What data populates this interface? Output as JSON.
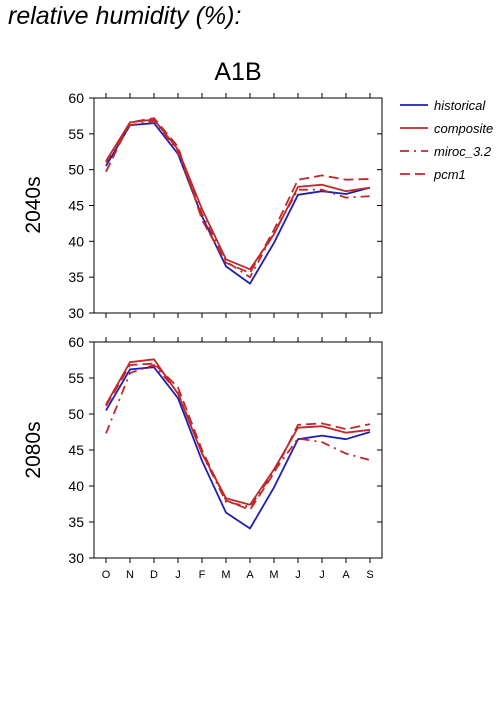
{
  "page": {
    "title": "relative humidity (%):"
  },
  "chart_data": [
    {
      "type": "line",
      "title": "A1B",
      "ylabel": "2040s",
      "xlabel": "",
      "ylim": [
        30,
        60
      ],
      "yticks": [
        30,
        35,
        40,
        45,
        50,
        55,
        60
      ],
      "categories": [
        "O",
        "N",
        "D",
        "J",
        "F",
        "M",
        "A",
        "M",
        "J",
        "J",
        "A",
        "S"
      ],
      "grid": false,
      "legend_position": "right, outside plot",
      "series": [
        {
          "name": "historical",
          "color": "#1f1fb4",
          "dash": "solid",
          "values": [
            50.5,
            56.2,
            56.5,
            52.2,
            43.5,
            36.5,
            34.1,
            39.8,
            46.5,
            47.0,
            46.6,
            47.5
          ]
        },
        {
          "name": "composite",
          "color": "#c0282a",
          "dash": "solid",
          "values": [
            51.2,
            56.6,
            57.0,
            52.8,
            44.5,
            37.5,
            36.1,
            41.0,
            47.6,
            47.9,
            47.0,
            47.5
          ]
        },
        {
          "name": "miroc_3.2",
          "color": "#c0282a",
          "dash": "dashdot",
          "values": [
            51.0,
            56.2,
            56.8,
            52.4,
            43.8,
            37.2,
            35.0,
            41.2,
            47.2,
            47.2,
            46.1,
            46.3
          ]
        },
        {
          "name": "pcm1",
          "color": "#c0282a",
          "dash": "dash",
          "values": [
            49.7,
            56.6,
            57.2,
            53.2,
            43.0,
            37.0,
            35.6,
            41.6,
            48.6,
            49.2,
            48.6,
            48.7
          ]
        }
      ]
    },
    {
      "type": "line",
      "title": "",
      "ylabel": "2080s",
      "xlabel": "",
      "ylim": [
        30,
        60
      ],
      "yticks": [
        30,
        35,
        40,
        45,
        50,
        55,
        60
      ],
      "categories": [
        "O",
        "N",
        "D",
        "J",
        "F",
        "M",
        "A",
        "M",
        "J",
        "J",
        "A",
        "S"
      ],
      "grid": false,
      "series": [
        {
          "name": "historical",
          "color": "#1f1fb4",
          "dash": "solid",
          "values": [
            50.5,
            56.2,
            56.5,
            52.2,
            43.5,
            36.3,
            34.1,
            39.8,
            46.5,
            47.0,
            46.5,
            47.5
          ]
        },
        {
          "name": "composite",
          "color": "#c0282a",
          "dash": "solid",
          "values": [
            51.3,
            57.2,
            57.6,
            52.8,
            44.5,
            38.3,
            37.4,
            42.3,
            48.1,
            48.3,
            47.4,
            47.8
          ]
        },
        {
          "name": "miroc_3.2",
          "color": "#c0282a",
          "dash": "dashdot",
          "values": [
            47.3,
            55.7,
            56.8,
            53.0,
            44.5,
            37.8,
            37.1,
            42.0,
            46.6,
            46.1,
            44.5,
            43.6
          ]
        },
        {
          "name": "pcm1",
          "color": "#c0282a",
          "dash": "dash",
          "values": [
            51.1,
            56.8,
            57.0,
            53.7,
            45.0,
            38.0,
            36.7,
            41.8,
            48.5,
            48.7,
            47.9,
            48.6
          ]
        }
      ]
    }
  ]
}
